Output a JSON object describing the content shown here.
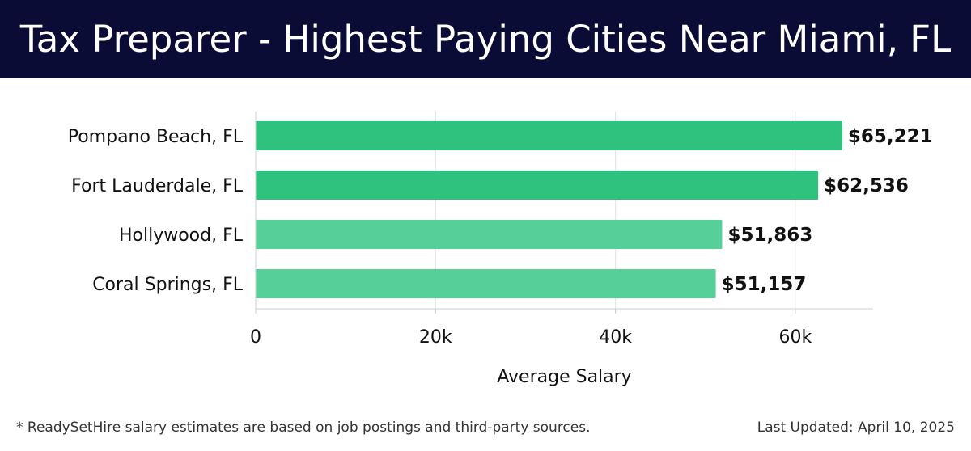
{
  "header": {
    "title": "Tax Preparer - Highest Paying Cities Near Miami, FL"
  },
  "chart_data": {
    "type": "bar",
    "orientation": "horizontal",
    "title": "Tax Preparer - Highest Paying Cities Near Miami, FL",
    "xlabel": "Average Salary",
    "ylabel": "",
    "categories": [
      "Pompano Beach, FL",
      "Fort Lauderdale, FL",
      "Hollywood, FL",
      "Coral Springs, FL"
    ],
    "values": [
      65221,
      62536,
      51863,
      51157
    ],
    "data_labels": [
      "$65,221",
      "$62,536",
      "$51,863",
      "$51,157"
    ],
    "xlim": [
      0,
      69000
    ],
    "xticks": [
      0,
      20000,
      40000,
      60000
    ],
    "xtick_labels": [
      "0",
      "20k",
      "40k",
      "60k"
    ],
    "grid": true,
    "colors": [
      "#2ec27e",
      "#2ec27e",
      "#57cf98",
      "#57cf98"
    ]
  },
  "footer": {
    "note": "* ReadySetHire salary estimates are based on job postings and third-party sources.",
    "updated": "Last Updated: April 10, 2025"
  }
}
